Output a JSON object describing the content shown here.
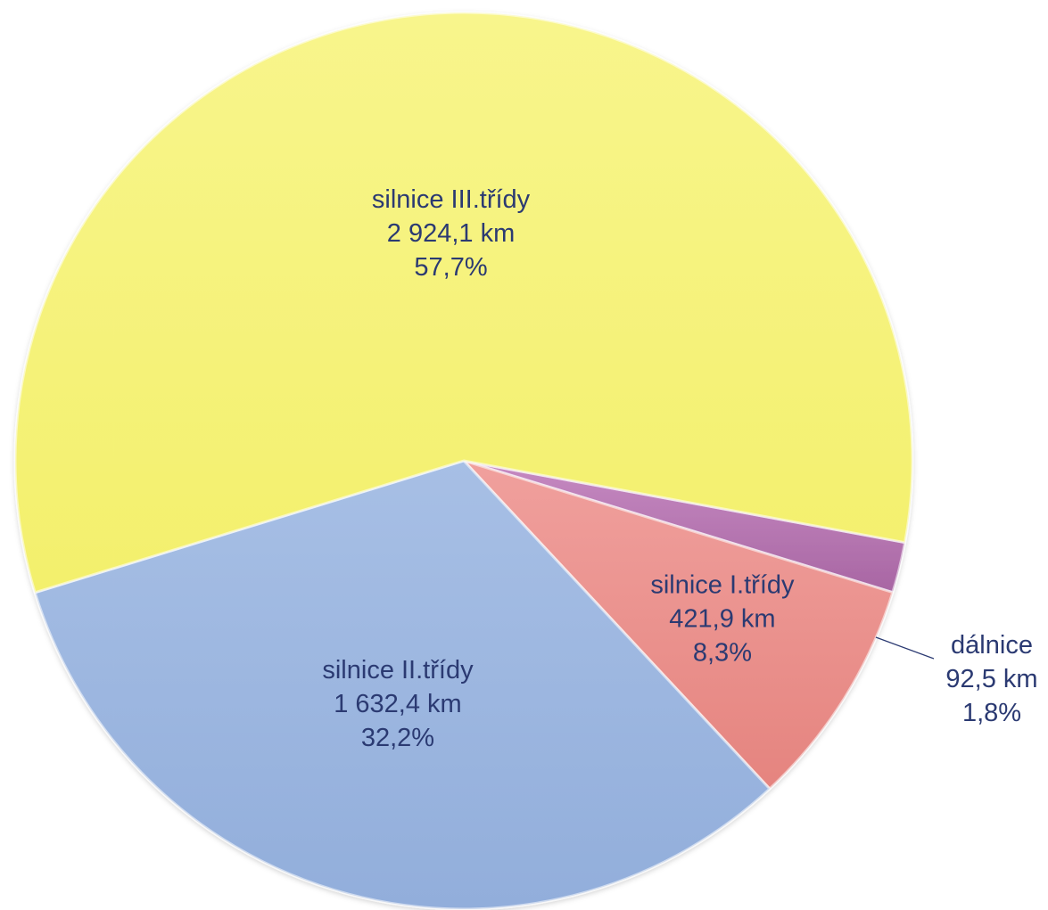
{
  "chart_data": {
    "type": "pie",
    "unit": "km",
    "slices": [
      {
        "name": "dálnice",
        "value": 92.5,
        "value_label": "92,5 km",
        "percent_label": "1,8%",
        "color": "#b877b3"
      },
      {
        "name": "silnice I.třídy",
        "value": 421.9,
        "value_label": "421,9 km",
        "percent_label": "8,3%",
        "color": "#ea918e"
      },
      {
        "name": "silnice II.třídy",
        "value": 1632.4,
        "value_label": "1 632,4 km",
        "percent_label": "32,2%",
        "color": "#9bb6df"
      },
      {
        "name": "silnice III.třídy",
        "value": 2924.1,
        "value_label": "2 924,1 km",
        "percent_label": "57,7%",
        "color": "#f6f47a"
      }
    ]
  }
}
